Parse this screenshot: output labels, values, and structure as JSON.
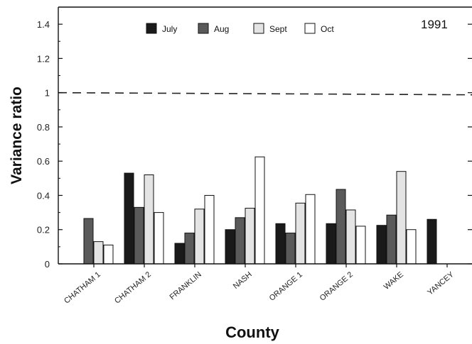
{
  "chart_data": {
    "type": "bar",
    "annotation": "1991",
    "xlabel": "County",
    "ylabel": "Variance ratio",
    "ylim": [
      0,
      1.5
    ],
    "yticks": [
      "0",
      "0.2",
      "0.4",
      "0.6",
      "0.8",
      "1",
      "1.2",
      "1.4"
    ],
    "reference_line": 1.0,
    "legend_position": "top",
    "categories": [
      "CHATHAM 1",
      "CHATHAM 2",
      "FRANKLIN",
      "NASH",
      "ORANGE 1",
      "ORANGE 2",
      "WAKE",
      "YANCEY"
    ],
    "series": [
      {
        "name": "July",
        "color": "#1a1a1a",
        "values": [
          null,
          0.53,
          0.12,
          0.2,
          0.235,
          0.235,
          0.225,
          0.26
        ]
      },
      {
        "name": "Aug",
        "color": "#5a5a5a",
        "values": [
          0.265,
          0.33,
          0.18,
          0.27,
          0.18,
          0.435,
          0.285,
          null
        ]
      },
      {
        "name": "Sept",
        "color": "#e4e4e4",
        "values": [
          0.13,
          0.52,
          0.32,
          0.325,
          0.355,
          0.315,
          0.54,
          null
        ]
      },
      {
        "name": "Oct",
        "color": "#ffffff",
        "values": [
          0.11,
          0.3,
          0.4,
          0.625,
          0.405,
          0.22,
          0.2,
          null
        ]
      }
    ]
  }
}
